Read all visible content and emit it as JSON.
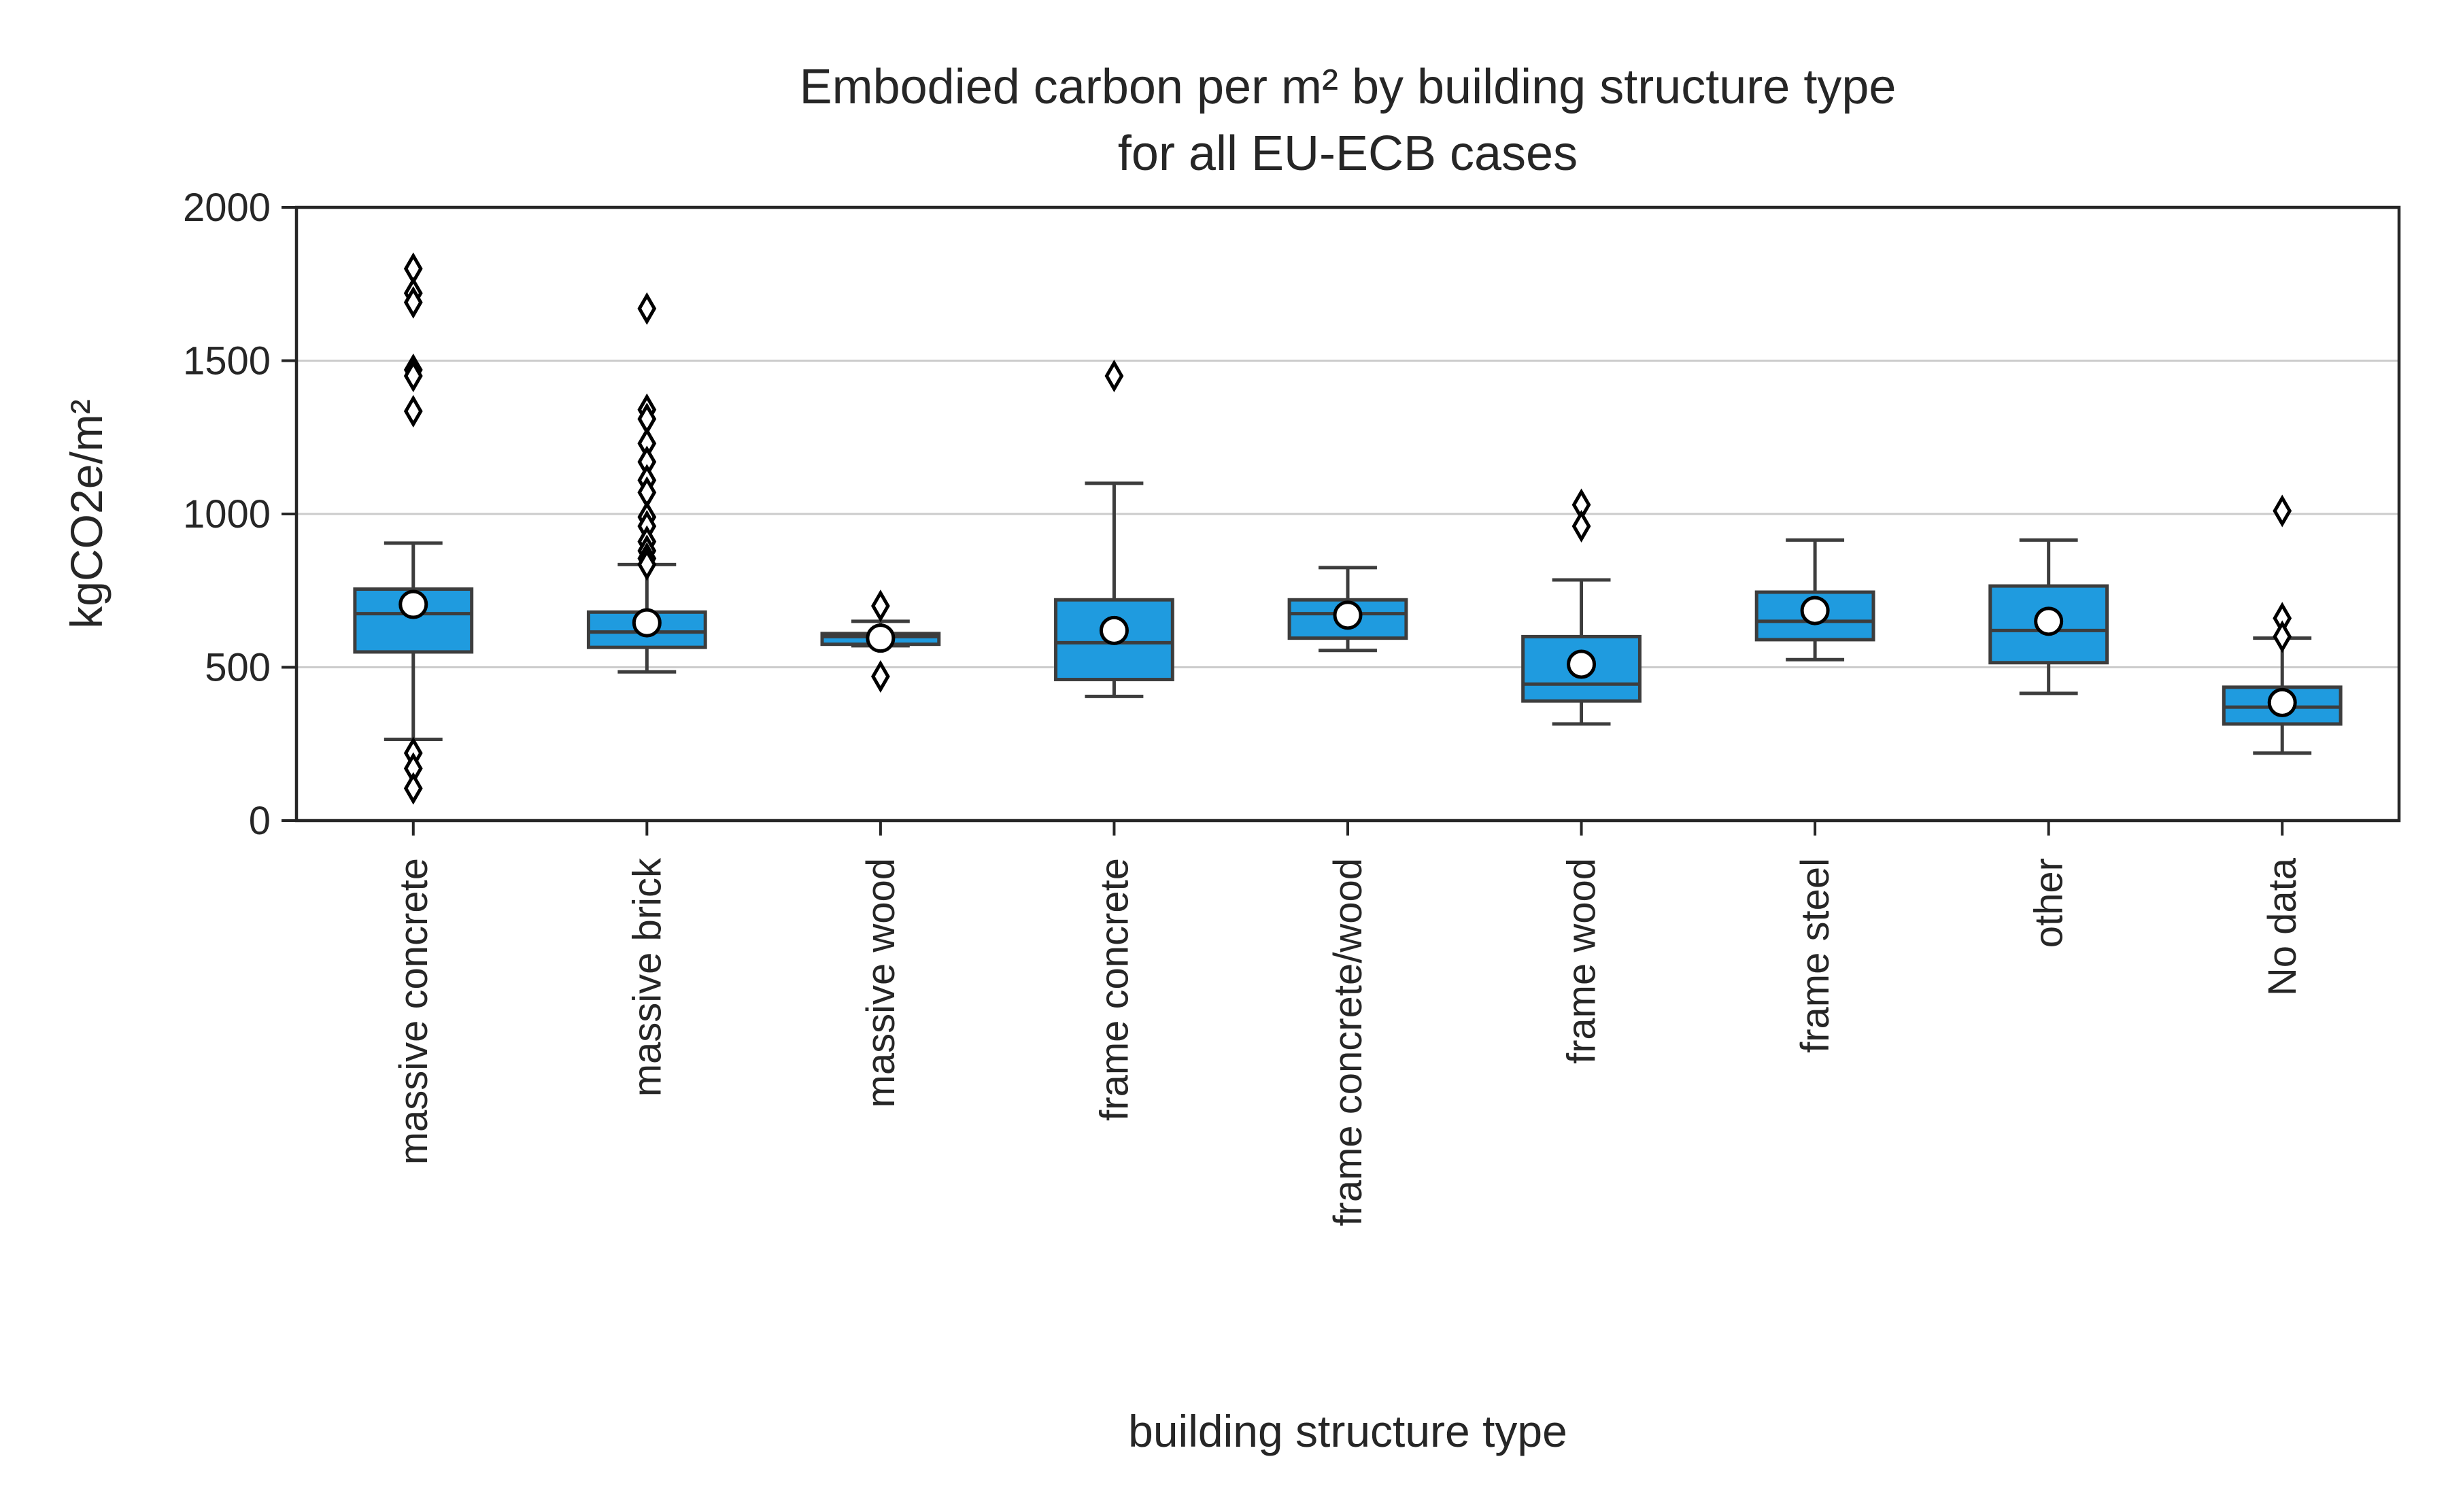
{
  "chart_data": {
    "type": "box",
    "title_lines": [
      "Embodied carbon per m² by building structure type",
      "for all EU-ECB cases"
    ],
    "xlabel": "building structure type",
    "ylabel": "kgCO2e/m²",
    "ylim": [
      0,
      2000
    ],
    "yticks": [
      0,
      500,
      1000,
      1500,
      2000
    ],
    "grid": "horizontal",
    "colors": {
      "box_fill": "#1f9bdf",
      "box_edge": "#3d3d3d",
      "grid": "#cccccc",
      "mean_marker": "#ffffff",
      "outlier": "#000000"
    },
    "categories": [
      {
        "label": "massive concrete",
        "whislo": 265,
        "q1": 550,
        "median": 675,
        "q3": 755,
        "whishi": 905,
        "mean": 705,
        "outliers": [
          1800,
          1720,
          1690,
          1470,
          1450,
          1335,
          220,
          170,
          105
        ]
      },
      {
        "label": "massive brick",
        "whislo": 485,
        "q1": 565,
        "median": 615,
        "q3": 680,
        "whishi": 835,
        "mean": 645,
        "outliers": [
          1670,
          1340,
          1310,
          1230,
          1170,
          1110,
          1070,
          990,
          960,
          910,
          880,
          855,
          835
        ]
      },
      {
        "label": "massive wood",
        "whislo": 570,
        "q1": 575,
        "median": 600,
        "q3": 610,
        "whishi": 650,
        "mean": 595,
        "outliers": [
          700,
          470
        ]
      },
      {
        "label": "frame concrete",
        "whislo": 405,
        "q1": 460,
        "median": 580,
        "q3": 720,
        "whishi": 1100,
        "mean": 620,
        "outliers": [
          1450
        ]
      },
      {
        "label": "frame concrete/wood",
        "whislo": 555,
        "q1": 595,
        "median": 675,
        "q3": 720,
        "whishi": 825,
        "mean": 670,
        "outliers": []
      },
      {
        "label": "frame wood",
        "whislo": 315,
        "q1": 390,
        "median": 445,
        "q3": 600,
        "whishi": 785,
        "mean": 510,
        "outliers": [
          1030,
          960
        ]
      },
      {
        "label": "frame steel",
        "whislo": 525,
        "q1": 590,
        "median": 650,
        "q3": 745,
        "whishi": 915,
        "mean": 685,
        "outliers": []
      },
      {
        "label": "other",
        "whislo": 415,
        "q1": 515,
        "median": 620,
        "q3": 765,
        "whishi": 915,
        "mean": 650,
        "outliers": []
      },
      {
        "label": "No data",
        "whislo": 220,
        "q1": 315,
        "median": 370,
        "q3": 435,
        "whishi": 595,
        "mean": 385,
        "outliers": [
          1010,
          660,
          600
        ]
      }
    ]
  }
}
